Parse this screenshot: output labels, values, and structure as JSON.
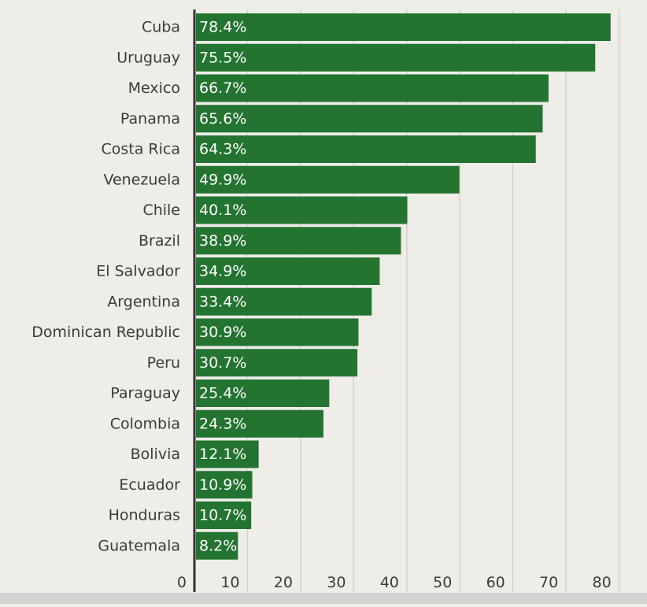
{
  "colors": {
    "background": "#efede8",
    "bar": "#237431",
    "grid": "#d6d2c9",
    "axis": "#333333",
    "footer": "#d3d3d1"
  },
  "chart_data": {
    "type": "bar",
    "orientation": "horizontal",
    "categories": [
      "Cuba",
      "Uruguay",
      "Mexico",
      "Panama",
      "Costa Rica",
      "Venezuela",
      "Chile",
      "Brazil",
      "El Salvador",
      "Argentina",
      "Dominican Republic",
      "Peru",
      "Paraguay",
      "Colombia",
      "Bolivia",
      "Ecuador",
      "Honduras",
      "Guatemala"
    ],
    "values": [
      78.4,
      75.5,
      66.7,
      65.6,
      64.3,
      49.9,
      40.1,
      38.9,
      34.9,
      33.4,
      30.9,
      30.7,
      25.4,
      24.3,
      12.1,
      10.9,
      10.7,
      8.2
    ],
    "value_labels": [
      "78.4%",
      "75.5%",
      "66.7%",
      "65.6%",
      "64.3%",
      "49.9%",
      "40.1%",
      "38.9%",
      "34.9%",
      "33.4%",
      "30.9%",
      "30.7%",
      "25.4%",
      "24.3%",
      "12.1%",
      "10.9%",
      "10.7%",
      "8.2%"
    ],
    "xlim": [
      0,
      80
    ],
    "x_ticks": [
      "0",
      "10",
      "20",
      "30",
      "40",
      "50",
      "60",
      "70",
      "80"
    ],
    "grid": true,
    "title": "",
    "xlabel": "",
    "ylabel": ""
  }
}
